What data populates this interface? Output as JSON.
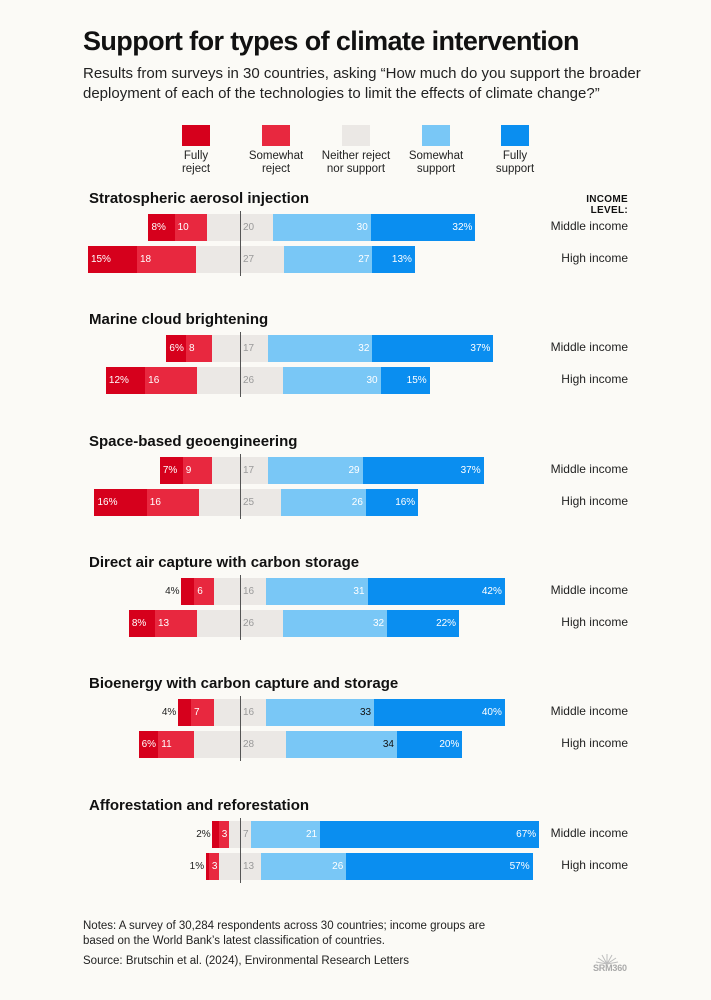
{
  "title": "Support for types of climate intervention",
  "subtitle": "Results from surveys in 30 countries, asking “How much do you support the broader deployment of each of the technologies to limit the effects of climate change?”",
  "income_level_header": "INCOME LEVEL:",
  "colors": {
    "fully_reject": "#d6001c",
    "somewhat_reject": "#e8283f",
    "neither": "#ebe8e5",
    "somewhat_support": "#79c7f6",
    "fully_support": "#0a8ef0"
  },
  "chart_data": {
    "type": "bar",
    "orientation": "horizontal-diverging",
    "title": "Support for types of climate intervention",
    "unit": "%",
    "legend": [
      {
        "key": "fully_reject",
        "label": "Fully\nreject"
      },
      {
        "key": "somewhat_reject",
        "label": "Somewhat\nreject"
      },
      {
        "key": "neither",
        "label": "Neither reject\nnor support"
      },
      {
        "key": "somewhat_support",
        "label": "Somewhat\nsupport"
      },
      {
        "key": "fully_support",
        "label": "Fully\nsupport"
      }
    ],
    "groups": [
      {
        "name": "Stratospheric aerosol injection",
        "rows": [
          {
            "label": "Middle income",
            "values": [
              8,
              10,
              20,
              30,
              32
            ],
            "labels": [
              "8%",
              "10",
              "20",
              "30",
              "32%"
            ]
          },
          {
            "label": "High income",
            "values": [
              15,
              18,
              27,
              27,
              13
            ],
            "labels": [
              "15%",
              "18",
              "27",
              "27",
              "13%"
            ]
          }
        ]
      },
      {
        "name": "Marine cloud brightening",
        "rows": [
          {
            "label": "Middle income",
            "values": [
              6,
              8,
              17,
              32,
              37
            ],
            "labels": [
              "6%",
              "8",
              "17",
              "32",
              "37%"
            ]
          },
          {
            "label": "High income",
            "values": [
              12,
              16,
              26,
              30,
              15
            ],
            "labels": [
              "12%",
              "16",
              "26",
              "30",
              "15%"
            ]
          }
        ]
      },
      {
        "name": "Space-based geoengineering",
        "rows": [
          {
            "label": "Middle income",
            "values": [
              7,
              9,
              17,
              29,
              37
            ],
            "labels": [
              "7%",
              "9",
              "17",
              "29",
              "37%"
            ]
          },
          {
            "label": "High income",
            "values": [
              16,
              16,
              25,
              26,
              16
            ],
            "labels": [
              "16%",
              "16",
              "25",
              "26",
              "16%"
            ]
          }
        ]
      },
      {
        "name": "Direct air capture with carbon storage",
        "rows": [
          {
            "label": "Middle income",
            "values": [
              4,
              6,
              16,
              31,
              42
            ],
            "labels": [
              "4%",
              "6",
              "16",
              "31",
              "42%"
            ]
          },
          {
            "label": "High income",
            "values": [
              8,
              13,
              26,
              32,
              22
            ],
            "labels": [
              "8%",
              "13",
              "26",
              "32",
              "22%"
            ]
          }
        ]
      },
      {
        "name": "Bioenergy with carbon capture and storage",
        "rows": [
          {
            "label": "Middle income",
            "values": [
              4,
              7,
              16,
              33,
              40
            ],
            "labels": [
              "4%",
              "7",
              "16",
              "33",
              "40%"
            ]
          },
          {
            "label": "High income",
            "values": [
              6,
              11,
              28,
              34,
              20
            ],
            "labels": [
              "6%",
              "11",
              "28",
              "34",
              "20%"
            ]
          }
        ]
      },
      {
        "name": "Afforestation and reforestation",
        "rows": [
          {
            "label": "Middle income",
            "values": [
              2,
              3,
              7,
              21,
              67
            ],
            "labels": [
              "2%",
              "3",
              "7",
              "21",
              "67%"
            ]
          },
          {
            "label": "High income",
            "values": [
              1,
              3,
              13,
              26,
              57
            ],
            "labels": [
              "1%",
              "3",
              "13",
              "26",
              "57%"
            ]
          }
        ]
      }
    ]
  },
  "notes": "Notes: A survey of 30,284 respondents across 30 countries; income groups are based on the World Bank’s latest classification of countries.",
  "source": "Source: Brutschin et al. (2024), Environmental Research Letters",
  "logo_text": "SRM360"
}
